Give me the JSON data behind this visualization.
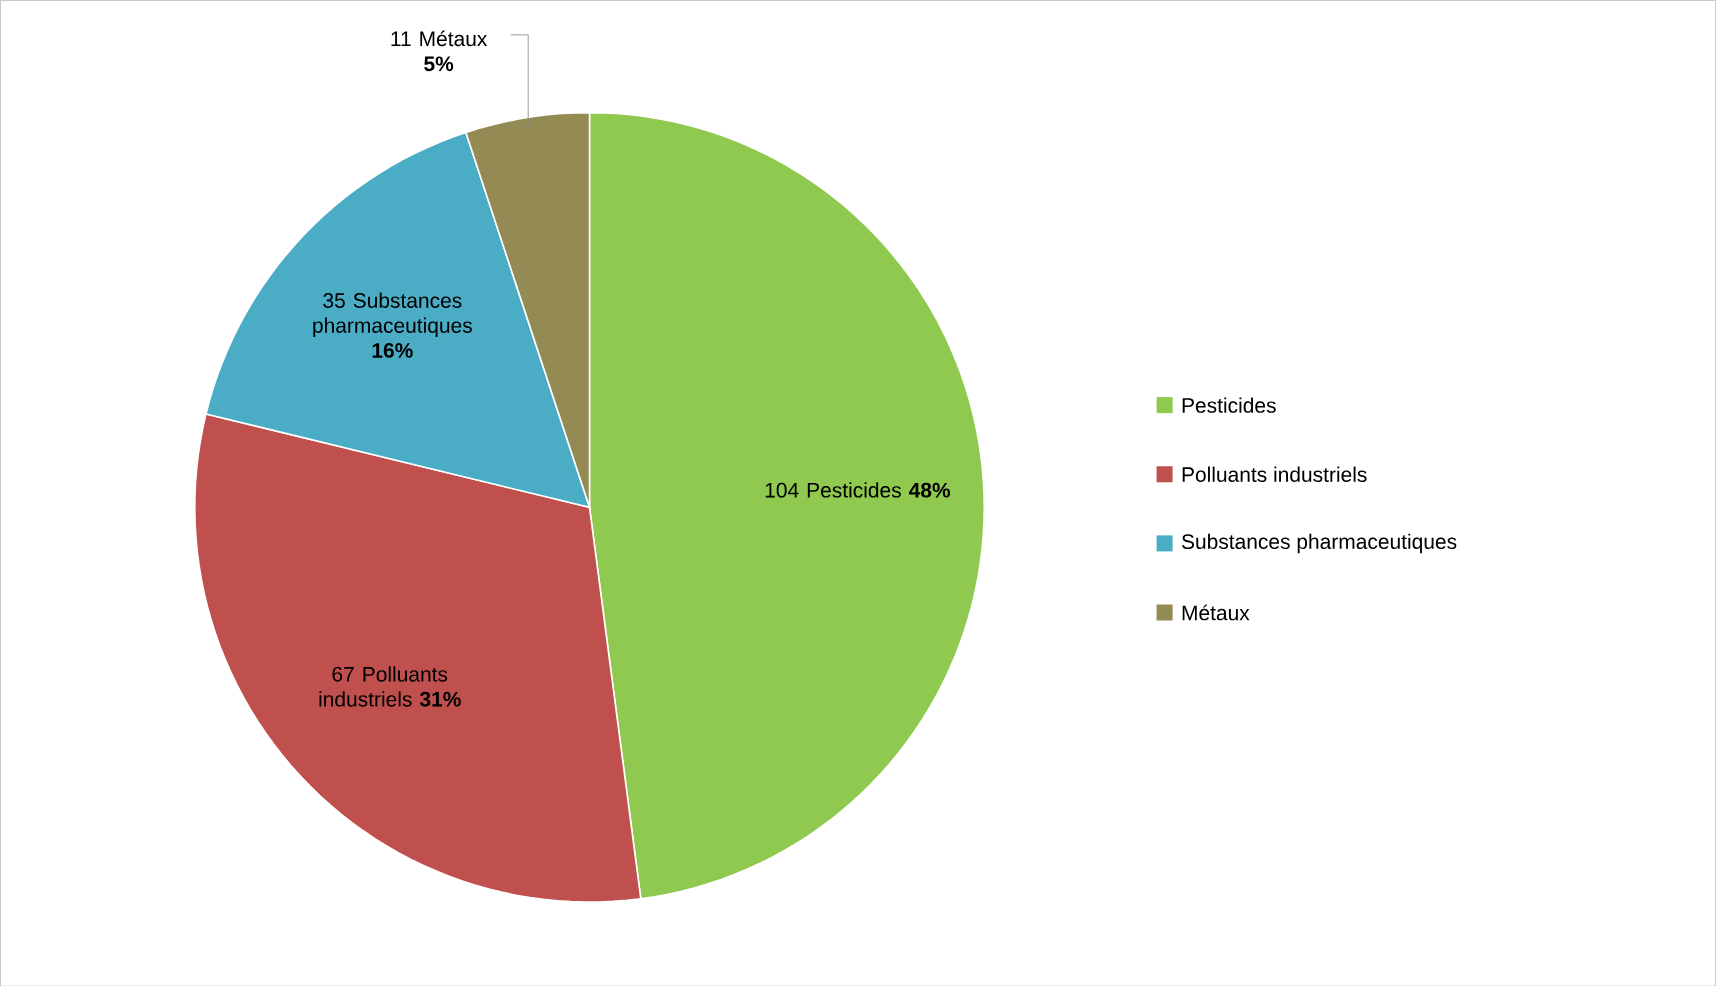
{
  "chart_data": {
    "type": "pie",
    "categories": [
      "Pesticides",
      "Polluants industriels",
      "Substances pharmaceutiques",
      "Métaux"
    ],
    "values": [
      104,
      67,
      35,
      11
    ],
    "colors": [
      "#8fc94f",
      "#c0504d",
      "#4bacc6",
      "#948a54"
    ],
    "value_labels": [
      "104 Pesticides **48%**",
      "67 Polluants industriels **31%**",
      "35 Substances pharmaceutiques **16%**",
      "11 Métaux **5%**"
    ],
    "legend": "right"
  }
}
